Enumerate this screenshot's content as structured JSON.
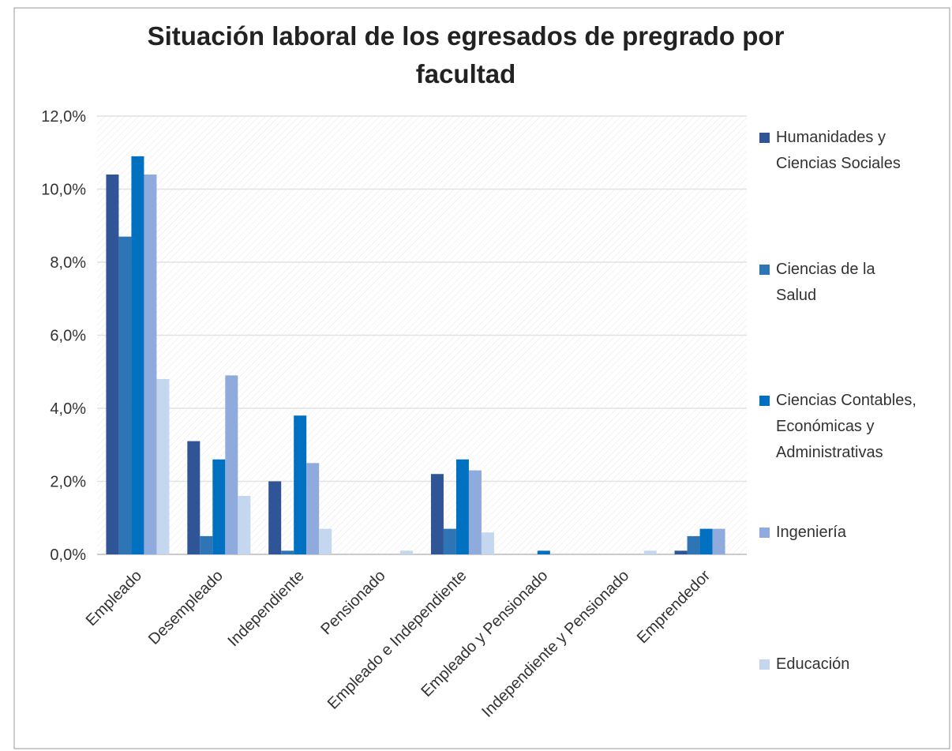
{
  "chart_data": {
    "type": "bar",
    "title": "Situación laboral de los egresados de pregrado por facultad",
    "categories": [
      "Empleado",
      "Desempleado",
      "Independiente",
      "Pensionado",
      "Empleado e Independiente",
      "Empleado y Pensionado",
      "Independiente y Pensionado",
      "Emprendedor"
    ],
    "series": [
      {
        "name": "Humanidades y Ciencias Sociales",
        "color": "#2f5597",
        "values": [
          10.4,
          3.1,
          2.0,
          0,
          2.2,
          0,
          0,
          0.1
        ]
      },
      {
        "name": "Ciencias de la Salud",
        "color": "#2e75b6",
        "values": [
          8.7,
          0.5,
          0.1,
          0,
          0.7,
          0,
          0,
          0.5
        ]
      },
      {
        "name": "Ciencias Contables, Económicas y Administrativas",
        "color": "#0070c0",
        "values": [
          10.9,
          2.6,
          3.8,
          0,
          2.6,
          0.1,
          0,
          0.7
        ]
      },
      {
        "name": "Ingeniería",
        "color": "#8faadc",
        "values": [
          10.4,
          4.9,
          2.5,
          0,
          2.3,
          0,
          0,
          0.7
        ]
      },
      {
        "name": "Educación",
        "color": "#c5d6ef",
        "values": [
          4.8,
          1.6,
          0.7,
          0.1,
          0.6,
          0,
          0.1,
          0
        ]
      }
    ],
    "ylim": [
      0,
      12
    ],
    "yticks": [
      {
        "value": 0,
        "label": "0,0%"
      },
      {
        "value": 2,
        "label": "2,0%"
      },
      {
        "value": 4,
        "label": "4,0%"
      },
      {
        "value": 6,
        "label": "6,0%"
      },
      {
        "value": 8,
        "label": "8,0%"
      },
      {
        "value": 10,
        "label": "10,0%"
      },
      {
        "value": 12,
        "label": "12,0%"
      }
    ],
    "grid": true,
    "legend": "right"
  }
}
